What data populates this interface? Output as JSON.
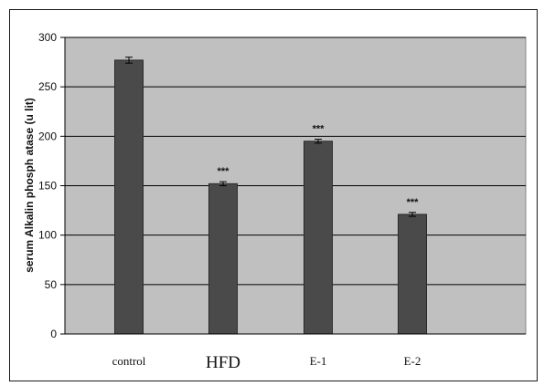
{
  "chart_data": {
    "type": "bar",
    "title": "",
    "xlabel": "",
    "ylabel": "serum Alkalin phosph atase (u lit)",
    "categories": [
      "control",
      "HFD",
      "E-1",
      "E-2"
    ],
    "values": [
      277,
      152,
      195,
      121
    ],
    "errors": [
      3,
      2,
      2,
      2
    ],
    "annotations": [
      "",
      "***",
      "***",
      "***"
    ],
    "ylim": [
      0,
      300
    ],
    "yticks": [
      "0",
      "50",
      "100",
      "150",
      "200",
      "250",
      "300"
    ],
    "grid": true,
    "legend": "none",
    "colors": {
      "bar": "#4a4a4a",
      "plot_bg": "#c0c0c0",
      "grid": "#000000"
    }
  }
}
